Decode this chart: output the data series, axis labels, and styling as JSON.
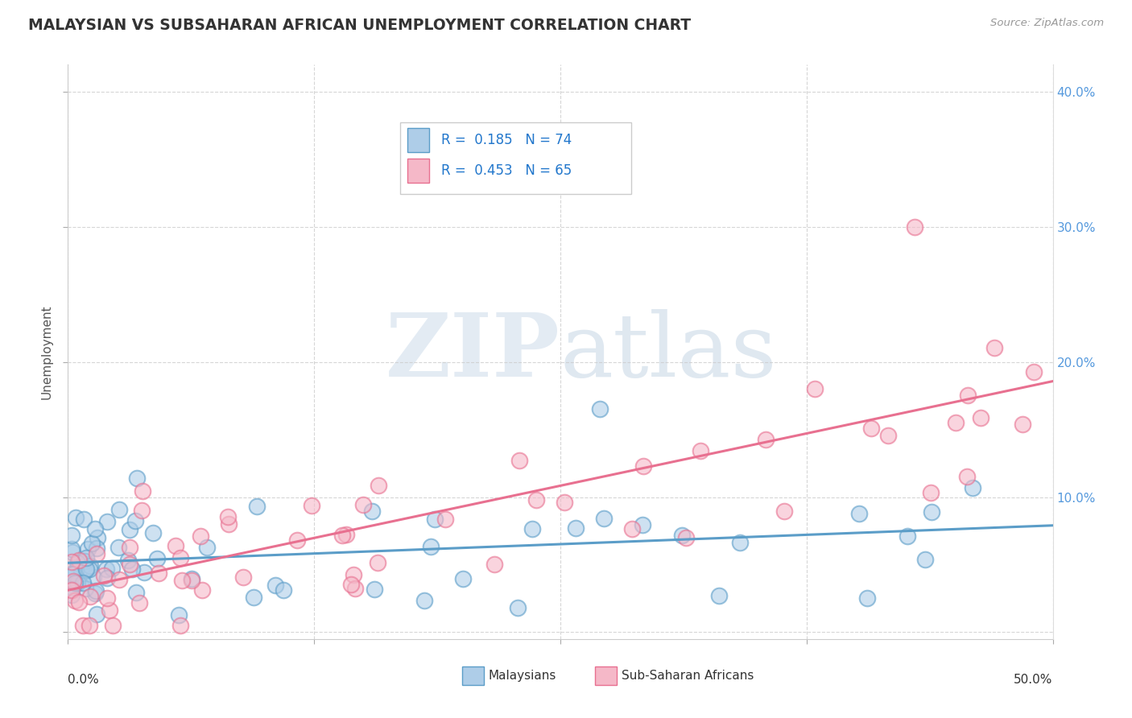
{
  "title": "MALAYSIAN VS SUBSAHARAN AFRICAN UNEMPLOYMENT CORRELATION CHART",
  "source": "Source: ZipAtlas.com",
  "ylabel": "Unemployment",
  "xlim": [
    0.0,
    0.5
  ],
  "ylim": [
    -0.005,
    0.42
  ],
  "yticks": [
    0.0,
    0.1,
    0.2,
    0.3,
    0.4
  ],
  "color_blue_fill": "#aecde8",
  "color_blue_edge": "#5b9dc8",
  "color_pink_fill": "#f5b8c8",
  "color_pink_edge": "#e87090",
  "color_blue_line": "#5b9dc8",
  "color_pink_line": "#e87090",
  "color_grid": "#cccccc",
  "color_right_tick": "#5599dd",
  "watermark_zip": "#c8d8e8",
  "watermark_atlas": "#b0c8e0",
  "n_malaysian": 74,
  "n_subsaharan": 65,
  "seed_malaysian": 77,
  "seed_subsaharan": 88
}
